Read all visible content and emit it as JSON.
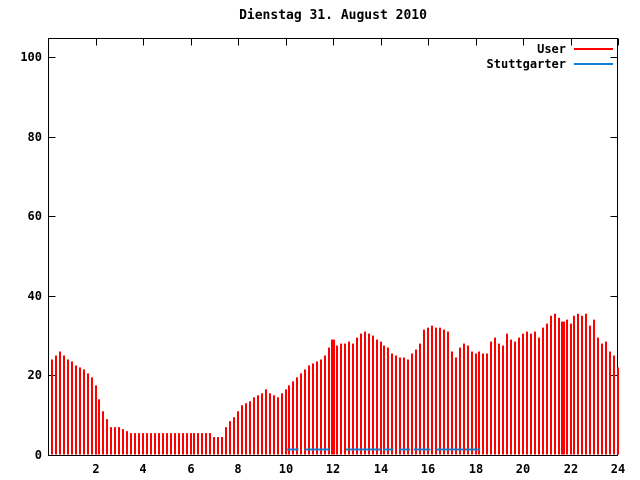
{
  "title": "Dienstag 31. August 2010",
  "chart_data": {
    "type": "bar",
    "title": "Dienstag 31. August 2010",
    "x_axis": {
      "ticks": [
        2,
        4,
        6,
        8,
        10,
        12,
        14,
        16,
        18,
        20,
        22,
        24
      ],
      "min": 0,
      "max": 24,
      "unit": "hour"
    },
    "y_axis": {
      "ticks": [
        0,
        20,
        40,
        60,
        80,
        100
      ],
      "min": 0,
      "max": 105
    },
    "grid": "off",
    "legend_position": "top-right-inside",
    "sample_step_hours": 0.166667,
    "series": [
      {
        "name": "User",
        "color": "#ff0000",
        "style": "impulses",
        "values": [
          24,
          25,
          26,
          25,
          24,
          23.5,
          22.5,
          22,
          21.5,
          20.5,
          19.5,
          17.5,
          14,
          11,
          9,
          7,
          7,
          7,
          6.5,
          6,
          5.5,
          5.5,
          5.5,
          5.5,
          5.5,
          5.5,
          5.5,
          5.5,
          5.5,
          5.5,
          5.5,
          5.5,
          5.5,
          5.5,
          5.5,
          5.5,
          5.5,
          5.5,
          5.5,
          5.5,
          5.5,
          4.5,
          4.5,
          4.5,
          7,
          8.5,
          9.5,
          11,
          12.5,
          13,
          13.5,
          14.5,
          15,
          15.5,
          16.5,
          15.5,
          15,
          14.5,
          15.5,
          16.5,
          17.5,
          18.5,
          19.5,
          20.5,
          21.5,
          22.5,
          23,
          23.5,
          24,
          25,
          27,
          29,
          27.5,
          28,
          28,
          28.5,
          28,
          29.5,
          30.5,
          31,
          30.5,
          30,
          29,
          28.5,
          27.5,
          27,
          25.5,
          25,
          24.5,
          24.5,
          24,
          25.5,
          26.5,
          28,
          31.5,
          32,
          32.5,
          32,
          32,
          31.5,
          31,
          26,
          24.5,
          27,
          28,
          27.5,
          26,
          25.5,
          26,
          25.5,
          25.5,
          28.5,
          29.5,
          28,
          27.5,
          30.5,
          29,
          28.5,
          29.5,
          30.5,
          31,
          30.5,
          31,
          29.5,
          32,
          33,
          35,
          35.5,
          34.5,
          33.5,
          34,
          33,
          35,
          35.5,
          35,
          35.5,
          32.5,
          34,
          29.5,
          28,
          28.5,
          26,
          25,
          22
        ],
        "thick_marks_hours": [
          12.0,
          21.67
        ]
      },
      {
        "name": "Stuttgarter",
        "color": "#0f7fd0",
        "style": "line",
        "level": 1.5,
        "segments_hours": [
          [
            10.05,
            10.55
          ],
          [
            10.8,
            11.85
          ],
          [
            12.55,
            14.0
          ],
          [
            14.1,
            14.55
          ],
          [
            14.8,
            15.25
          ],
          [
            15.4,
            16.1
          ],
          [
            16.35,
            17.5
          ],
          [
            17.55,
            18.2
          ]
        ]
      }
    ]
  }
}
